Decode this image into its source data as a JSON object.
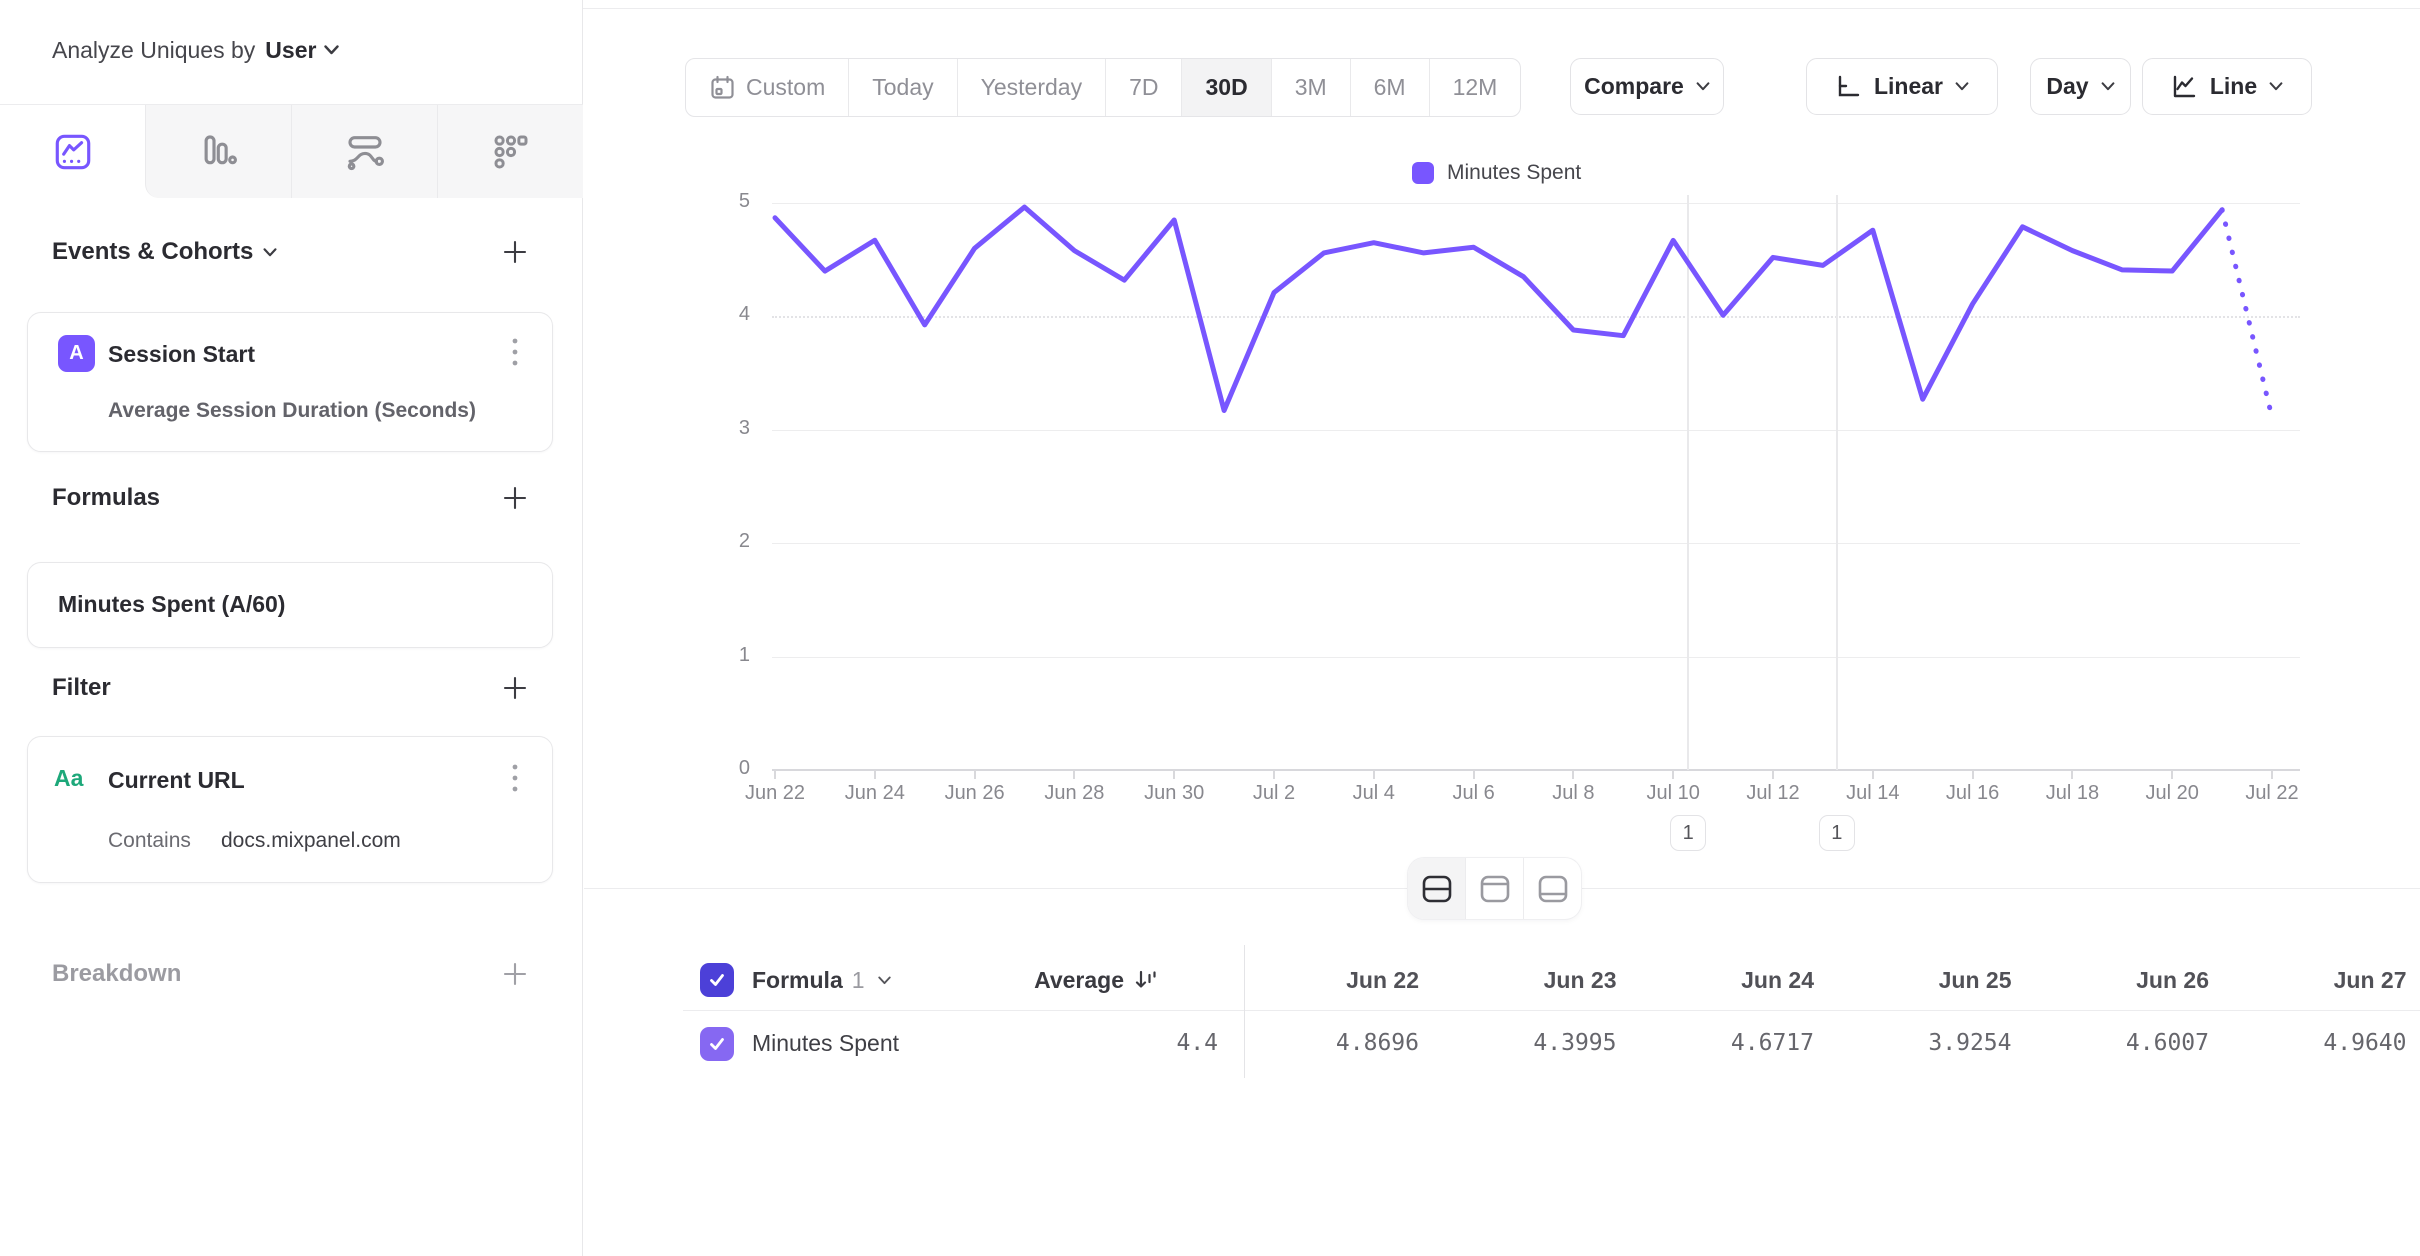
{
  "sidebar": {
    "analyze_label": "Analyze Uniques by",
    "analyze_value": "User",
    "tabs": [
      {
        "icon": "insights-chart-icon",
        "active": true
      },
      {
        "icon": "bar-chart-icon",
        "active": false
      },
      {
        "icon": "flow-icon",
        "active": false
      },
      {
        "icon": "retention-grid-icon",
        "active": false
      }
    ],
    "events_title": "Events & Cohorts",
    "event_card": {
      "badge": "A",
      "title": "Session Start",
      "subtitle": "Average Session Duration (Seconds)"
    },
    "formulas_title": "Formulas",
    "formula_card": {
      "title": "Minutes Spent (A/60)"
    },
    "filter_title": "Filter",
    "filter_card": {
      "badge": "Aa",
      "title": "Current URL",
      "operator": "Contains",
      "value": "docs.mixpanel.com"
    },
    "breakdown_title": "Breakdown"
  },
  "toolbar": {
    "date_ranges": [
      "Custom",
      "Today",
      "Yesterday",
      "7D",
      "30D",
      "3M",
      "6M",
      "12M"
    ],
    "active_range": "30D",
    "compare_label": "Compare",
    "scale_label": "Linear",
    "interval_label": "Day",
    "chart_type_label": "Line"
  },
  "chart_data": {
    "type": "line",
    "legend": [
      "Minutes Spent"
    ],
    "series_name": "Minutes Spent",
    "line_color": "#7856FF",
    "x": [
      "Jun 22",
      "Jun 23",
      "Jun 24",
      "Jun 25",
      "Jun 26",
      "Jun 27",
      "Jun 28",
      "Jun 29",
      "Jun 30",
      "Jul 1",
      "Jul 2",
      "Jul 3",
      "Jul 4",
      "Jul 5",
      "Jul 6",
      "Jul 7",
      "Jul 8",
      "Jul 9",
      "Jul 10",
      "Jul 11",
      "Jul 12",
      "Jul 13",
      "Jul 14",
      "Jul 15",
      "Jul 16",
      "Jul 17",
      "Jul 18",
      "Jul 19",
      "Jul 20",
      "Jul 21",
      "Jul 22"
    ],
    "values": [
      4.8696,
      4.3995,
      4.6717,
      3.9254,
      4.6007,
      4.964,
      4.58,
      4.32,
      4.85,
      3.17,
      4.21,
      4.56,
      4.65,
      4.56,
      4.61,
      4.35,
      3.88,
      3.83,
      4.67,
      4.01,
      4.52,
      4.45,
      4.76,
      3.27,
      4.11,
      4.79,
      4.58,
      4.41,
      4.4,
      4.94,
      3.11
    ],
    "incomplete_last_segment": true,
    "ylim": [
      0,
      5
    ],
    "y_ticks": [
      0,
      1,
      2,
      3,
      4,
      5
    ],
    "x_tick_every": 2,
    "dotted_gridline_at": 4,
    "grid": true,
    "legend_position": "top-center",
    "annotations": [
      {
        "label": "1",
        "day_index": 18.3
      },
      {
        "label": "1",
        "day_index": 21.28
      }
    ]
  },
  "table": {
    "group_label": "Formula",
    "group_number": "1",
    "avg_header": "Average",
    "avg_value": "4.4",
    "row_label": "Minutes Spent",
    "columns": [
      "Jun 22",
      "Jun 23",
      "Jun 24",
      "Jun 25",
      "Jun 26",
      "Jun 27"
    ],
    "row_values": [
      "4.8696",
      "4.3995",
      "4.6717",
      "3.9254",
      "4.6007",
      "4.9640"
    ]
  },
  "colors": {
    "accent": "#7856FF",
    "checkbox_header": "#4C40D8",
    "checkbox_row": "#8668F2",
    "filter_badge_green": "#1DA87A",
    "border": "#E8E8EA",
    "text_dark": "#2B2B31",
    "text_gray": "#8F8F96"
  }
}
